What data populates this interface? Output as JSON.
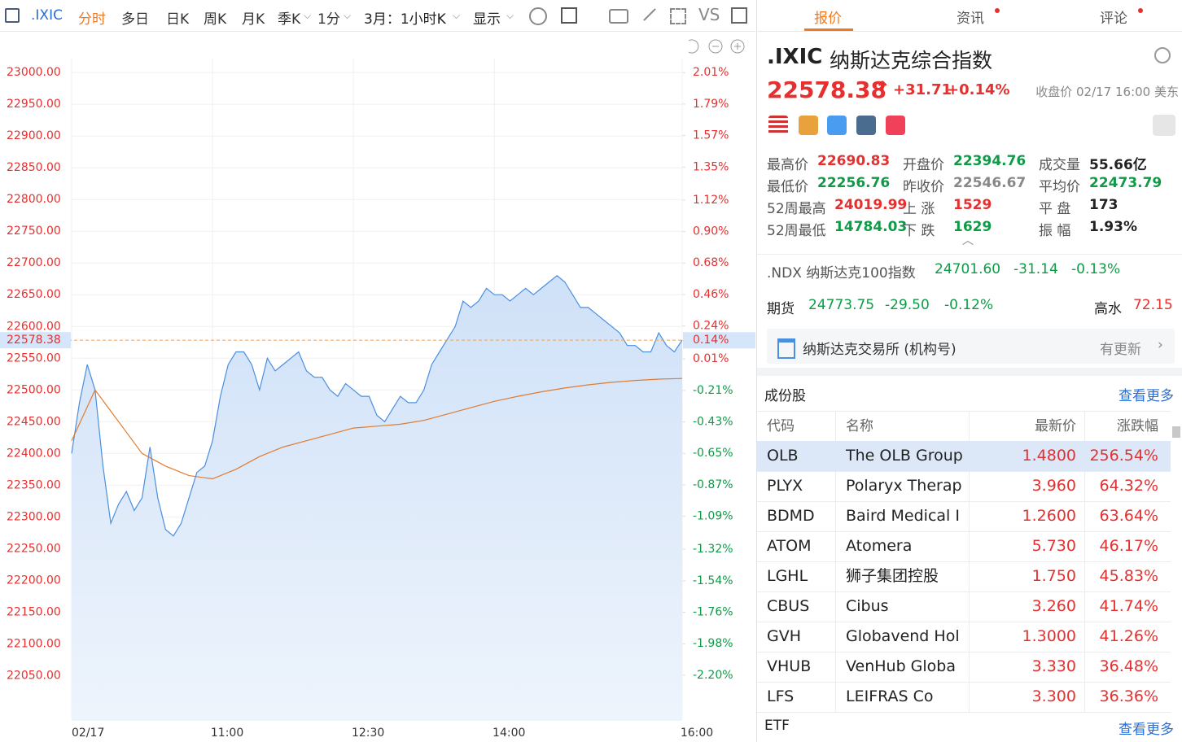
{
  "toolbar": {
    "symbol": ".IXIC",
    "modes": [
      "分时",
      "多日",
      "日K",
      "周K",
      "月K",
      "季K",
      "1分"
    ],
    "range": "3月：1小时K",
    "display": "显示",
    "compare": "VS"
  },
  "chart_data": {
    "type": "line",
    "xlim": [
      0,
      390
    ],
    "xticks": [
      {
        "value": 0,
        "label": "02/17"
      },
      {
        "value": 90,
        "label": "11:00"
      },
      {
        "value": 180,
        "label": "12:30"
      },
      {
        "value": 270,
        "label": "14:00"
      },
      {
        "value": 390,
        "label": "16:00"
      }
    ],
    "ylim": [
      21980,
      23022
    ],
    "yticks": [
      {
        "value": 23000,
        "label": "23000.00"
      },
      {
        "value": 22950,
        "label": "22950.00"
      },
      {
        "value": 22900,
        "label": "22900.00"
      },
      {
        "value": 22850,
        "label": "22850.00"
      },
      {
        "value": 22800,
        "label": "22800.00"
      },
      {
        "value": 22750,
        "label": "22750.00"
      },
      {
        "value": 22700,
        "label": "22700.00"
      },
      {
        "value": 22650,
        "label": "22650.00"
      },
      {
        "value": 22600,
        "label": "22600.00"
      },
      {
        "value": 22550,
        "label": "22550.00"
      },
      {
        "value": 22500,
        "label": "22500.00"
      },
      {
        "value": 22450,
        "label": "22450.00"
      },
      {
        "value": 22400,
        "label": "22400.00"
      },
      {
        "value": 22350,
        "label": "22350.00"
      },
      {
        "value": 22300,
        "label": "22300.00"
      },
      {
        "value": 22250,
        "label": "22250.00"
      },
      {
        "value": 22200,
        "label": "22200.00"
      },
      {
        "value": 22150,
        "label": "22150.00"
      },
      {
        "value": 22100,
        "label": "22100.00"
      },
      {
        "value": 22050,
        "label": "22050.00"
      }
    ],
    "y2lim": [
      -2.513,
      2.108
    ],
    "y2ticks": [
      {
        "value": 2.01,
        "label": "2.01%"
      },
      {
        "value": 1.79,
        "label": "1.79%"
      },
      {
        "value": 1.57,
        "label": "1.57%"
      },
      {
        "value": 1.35,
        "label": "1.35%"
      },
      {
        "value": 1.12,
        "label": "1.12%"
      },
      {
        "value": 0.9,
        "label": "0.90%"
      },
      {
        "value": 0.68,
        "label": "0.68%"
      },
      {
        "value": 0.46,
        "label": "0.46%"
      },
      {
        "value": 0.24,
        "label": "0.24%"
      },
      {
        "value": 0.01,
        "label": "0.01%"
      },
      {
        "value": -0.21,
        "label": "-0.21%"
      },
      {
        "value": -0.43,
        "label": "-0.43%"
      },
      {
        "value": -0.65,
        "label": "-0.65%"
      },
      {
        "value": -0.87,
        "label": "-0.87%"
      },
      {
        "value": -1.09,
        "label": "-1.09%"
      },
      {
        "value": -1.32,
        "label": "-1.32%"
      },
      {
        "value": -1.54,
        "label": "-1.54%"
      },
      {
        "value": -1.76,
        "label": "-1.76%"
      },
      {
        "value": -1.98,
        "label": "-1.98%"
      },
      {
        "value": -2.2,
        "label": "-2.20%"
      }
    ],
    "last_price": 22578.38,
    "last_pct": {
      "value": 0.14,
      "label": "0.14%"
    },
    "series": [
      {
        "color": "#4a8fe0",
        "x": [
          0,
          5,
          10,
          15,
          20,
          25,
          30,
          35,
          40,
          45,
          50,
          55,
          60,
          65,
          70,
          75,
          80,
          85,
          90,
          95,
          100,
          105,
          110,
          115,
          120,
          125,
          130,
          135,
          140,
          145,
          150,
          155,
          160,
          165,
          170,
          175,
          180,
          185,
          190,
          195,
          200,
          205,
          210,
          215,
          220,
          225,
          230,
          235,
          240,
          245,
          250,
          255,
          260,
          265,
          270,
          275,
          280,
          285,
          290,
          295,
          300,
          305,
          310,
          315,
          320,
          325,
          330,
          335,
          340,
          345,
          350,
          355,
          360,
          365,
          370,
          375,
          380,
          385,
          390
        ],
        "values": [
          22400,
          22480,
          22540,
          22500,
          22380,
          22290,
          22320,
          22340,
          22310,
          22330,
          22410,
          22330,
          22280,
          22270,
          22290,
          22330,
          22370,
          22380,
          22420,
          22490,
          22540,
          22560,
          22560,
          22540,
          22500,
          22550,
          22530,
          22540,
          22550,
          22560,
          22530,
          22520,
          22520,
          22500,
          22490,
          22510,
          22500,
          22490,
          22490,
          22460,
          22450,
          22470,
          22490,
          22480,
          22480,
          22500,
          22540,
          22560,
          22580,
          22600,
          22640,
          22630,
          22640,
          22660,
          22650,
          22650,
          22640,
          22650,
          22660,
          22650,
          22660,
          22670,
          22680,
          22670,
          22650,
          22630,
          22630,
          22620,
          22610,
          22600,
          22590,
          22570,
          22570,
          22560,
          22560,
          22590,
          22570,
          22560,
          22578.38
        ]
      },
      {
        "color": "#e07b30",
        "x": [
          0,
          15,
          30,
          45,
          60,
          75,
          90,
          105,
          120,
          135,
          150,
          165,
          180,
          195,
          210,
          225,
          240,
          255,
          270,
          285,
          300,
          315,
          330,
          345,
          360,
          375,
          390
        ],
        "values": [
          22420,
          22500,
          22450,
          22400,
          22380,
          22365,
          22360,
          22375,
          22395,
          22410,
          22420,
          22430,
          22440,
          22443,
          22446,
          22452,
          22462,
          22472,
          22482,
          22490,
          22497,
          22503,
          22508,
          22512,
          22515,
          22517,
          22518
        ]
      }
    ]
  },
  "tabs": [
    "报价",
    "资讯",
    "评论"
  ],
  "quote": {
    "symbol": ".IXIC",
    "name": "纳斯达克综合指数",
    "price": "22578.38",
    "change": "+31.71",
    "pct": "+0.14%",
    "status": "收盘价 02/17 16:00 美东"
  },
  "stats": [
    [
      {
        "label": "最高价",
        "value": "22690.83"
      },
      {
        "label": "开盘价",
        "value": "22394.76"
      },
      {
        "label": "成交量",
        "value": "55.66亿"
      }
    ],
    [
      {
        "label": "最低价",
        "value": "22256.76"
      },
      {
        "label": "昨收价",
        "value": "22546.67"
      },
      {
        "label": "平均价",
        "value": "22473.79"
      }
    ],
    [
      {
        "label": "52周最高",
        "value": "24019.99"
      },
      {
        "label": "上 涨",
        "value": "1529"
      },
      {
        "label": "平 盘",
        "value": "173"
      }
    ],
    [
      {
        "label": "52周最低",
        "value": "14784.03"
      },
      {
        "label": "下 跌",
        "value": "1629"
      },
      {
        "label": "振 幅",
        "value": "1.93%"
      }
    ]
  ],
  "related": {
    "name": ".NDX 纳斯达克100指数",
    "price": "24701.60",
    "change": "-31.14",
    "pct": "-0.13%"
  },
  "futures": {
    "label": "期货",
    "price": "24773.75",
    "change": "-29.50",
    "pct": "-0.12%",
    "premium_label": "高水",
    "premium": "72.15"
  },
  "exchange": {
    "name": "纳斯达克交易所 (机构号)",
    "update": "有更新"
  },
  "constituents": {
    "title": "成份股",
    "more": "查看更多",
    "headers": [
      "代码",
      "名称",
      "最新价",
      "涨跌幅"
    ],
    "rows": [
      [
        "OLB",
        "The OLB Group",
        "1.4800",
        "256.54%"
      ],
      [
        "PLYX",
        "Polaryx Therap",
        "3.960",
        "64.32%"
      ],
      [
        "BDMD",
        "Baird Medical I",
        "1.2600",
        "63.64%"
      ],
      [
        "ATOM",
        "Atomera",
        "5.730",
        "46.17%"
      ],
      [
        "LGHL",
        "狮子集团控股",
        "1.750",
        "45.83%"
      ],
      [
        "CBUS",
        "Cibus",
        "3.260",
        "41.74%"
      ],
      [
        "GVH",
        "Globavend Hol",
        "1.3000",
        "41.26%"
      ],
      [
        "VHUB",
        "VenHub Globa",
        "3.330",
        "36.48%"
      ],
      [
        "LFS",
        "LEIFRAS Co",
        "3.300",
        "36.36%"
      ]
    ]
  },
  "etf": {
    "title": "ETF",
    "more": "查看更多"
  }
}
